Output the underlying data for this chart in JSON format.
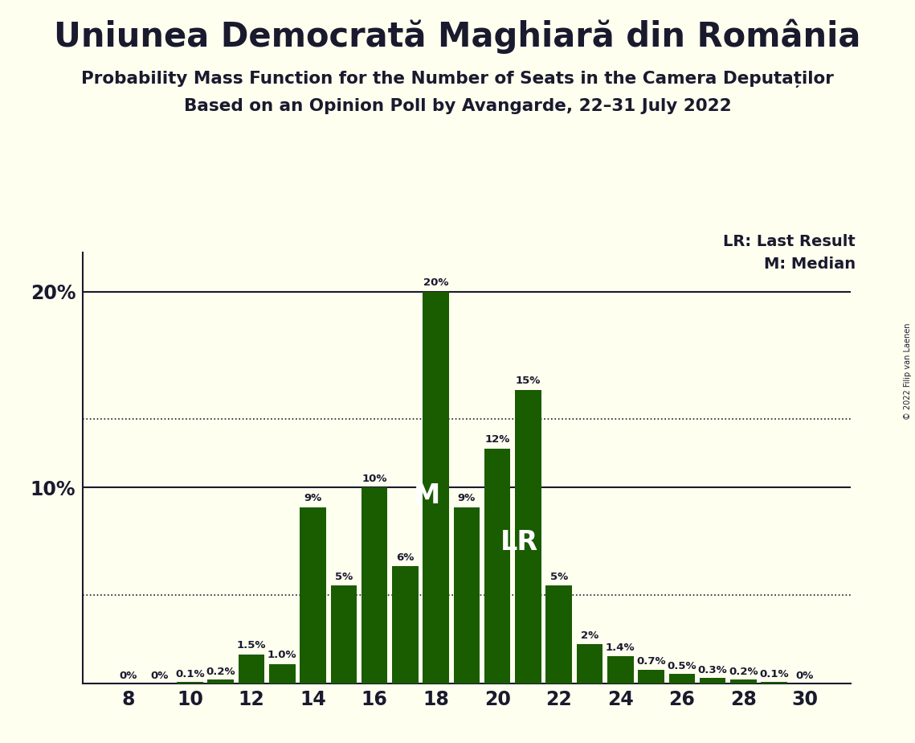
{
  "title": "Uniunea Democrată Maghiară din România",
  "subtitle1": "Probability Mass Function for the Number of Seats in the Camera Deputaților",
  "subtitle2": "Based on an Opinion Poll by Avangarde, 22–31 July 2022",
  "copyright": "© 2022 Filip van Laenen",
  "seats": [
    8,
    9,
    10,
    11,
    12,
    13,
    14,
    15,
    16,
    17,
    18,
    19,
    20,
    21,
    22,
    23,
    24,
    25,
    26,
    27,
    28,
    29,
    30
  ],
  "values": [
    0.0,
    0.0,
    0.1,
    0.2,
    1.5,
    1.0,
    9.0,
    5.0,
    10.0,
    6.0,
    20.0,
    9.0,
    12.0,
    15.0,
    5.0,
    2.0,
    1.4,
    0.7,
    0.5,
    0.3,
    0.2,
    0.1,
    0.0
  ],
  "labels": [
    "0%",
    "0%",
    "0.1%",
    "0.2%",
    "1.5%",
    "1.0%",
    "9%",
    "5%",
    "10%",
    "6%",
    "20%",
    "9%",
    "12%",
    "15%",
    "5%",
    "2%",
    "1.4%",
    "0.7%",
    "0.5%",
    "0.3%",
    "0.2%",
    "0.1%",
    "0%"
  ],
  "bar_color": "#1a5c00",
  "background_color": "#fffff0",
  "text_color": "#1a1a2e",
  "median_seat": 18,
  "last_result_seat": 21,
  "dotted_line_1": 13.5,
  "dotted_line_2": 4.5,
  "xtick_positions": [
    8,
    10,
    12,
    14,
    16,
    18,
    20,
    22,
    24,
    26,
    28,
    30
  ],
  "ylim": [
    0,
    22
  ],
  "legend_LR": "LR: Last Result",
  "legend_M": "M: Median"
}
